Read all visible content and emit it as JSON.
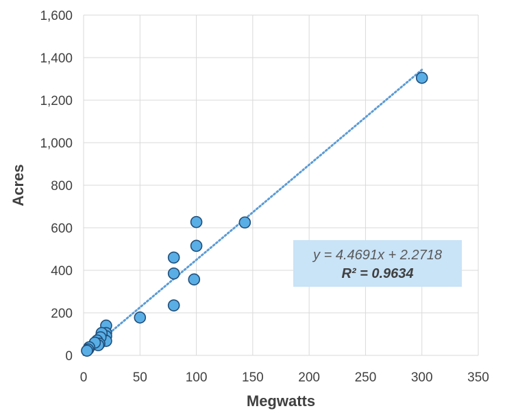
{
  "chart_data": {
    "type": "scatter",
    "xlabel": "Megwatts",
    "ylabel": "Acres",
    "xlim": [
      0,
      350
    ],
    "ylim": [
      0,
      1600
    ],
    "xticks": [
      0,
      50,
      100,
      150,
      200,
      250,
      300,
      350
    ],
    "yticks": [
      0,
      200,
      400,
      600,
      800,
      1000,
      1200,
      1400,
      1600
    ],
    "xtick_labels": [
      "0",
      "50",
      "100",
      "150",
      "200",
      "250",
      "300",
      "350"
    ],
    "ytick_labels": [
      "0",
      "200",
      "400",
      "600",
      "800",
      "1,000",
      "1,200",
      "1,400",
      "1,600"
    ],
    "grid": true,
    "points": [
      {
        "x": 300,
        "y": 1305
      },
      {
        "x": 143,
        "y": 625
      },
      {
        "x": 100,
        "y": 627
      },
      {
        "x": 100,
        "y": 515
      },
      {
        "x": 98,
        "y": 357
      },
      {
        "x": 80,
        "y": 460
      },
      {
        "x": 80,
        "y": 385
      },
      {
        "x": 80,
        "y": 235
      },
      {
        "x": 50,
        "y": 178
      },
      {
        "x": 20,
        "y": 140
      },
      {
        "x": 20,
        "y": 105
      },
      {
        "x": 20,
        "y": 90
      },
      {
        "x": 18,
        "y": 75
      },
      {
        "x": 20,
        "y": 68
      },
      {
        "x": 16,
        "y": 105
      },
      {
        "x": 15,
        "y": 85
      },
      {
        "x": 12,
        "y": 70
      },
      {
        "x": 14,
        "y": 55
      },
      {
        "x": 13,
        "y": 48
      },
      {
        "x": 10,
        "y": 60
      },
      {
        "x": 5,
        "y": 38
      },
      {
        "x": 4,
        "y": 28
      },
      {
        "x": 3,
        "y": 22
      }
    ],
    "trendline": {
      "type": "linear",
      "slope": 4.4691,
      "intercept": 2.2718,
      "x_range": [
        0,
        300
      ],
      "equation_label": "y = 4.4691x + 2.2718",
      "r2_label": "R² = 0.9634"
    },
    "colors": {
      "marker_fill": "#5aaee6",
      "marker_stroke": "#1f4e79",
      "trendline": "#5b9bd5",
      "equation_box": "#c9e3f7",
      "grid": "#d9d9d9",
      "text": "#404040"
    }
  }
}
